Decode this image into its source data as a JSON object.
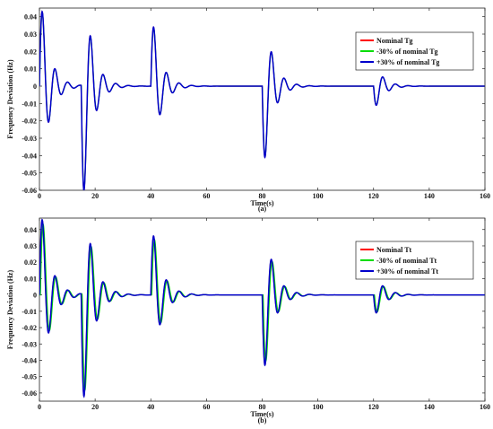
{
  "chart_data": [
    {
      "type": "line",
      "caption": "(a)",
      "xlabel": "Time(s)",
      "ylabel": "Frequency Deviation (Hz)",
      "xlim": [
        0,
        160
      ],
      "ylim": [
        -0.06,
        0.045
      ],
      "xticks": [
        0,
        20,
        40,
        60,
        80,
        100,
        120,
        140,
        160
      ],
      "yticks": [
        0.04,
        0.03,
        0.02,
        0.01,
        0,
        -0.01,
        -0.02,
        -0.03,
        -0.04,
        -0.05,
        -0.06
      ],
      "legend_position": "top-right",
      "series": [
        {
          "name": "Nominal Tg",
          "color": "#ff0000",
          "gain": 1.0,
          "shift": 0.0
        },
        {
          "name": "-30% of nominal Tg",
          "color": "#00dd00",
          "gain": 0.985,
          "shift": 0.05
        },
        {
          "name": "+30% of nominal Tg",
          "color": "#0000cc",
          "gain": 1.0,
          "shift": 0.0
        }
      ],
      "disturbances": [
        {
          "t": 0,
          "peak": 0.043,
          "trough": -0.017,
          "freq_hz": 0.22,
          "decay": 0.32
        },
        {
          "t": 15,
          "peak": -0.06,
          "trough": 0.019,
          "freq_hz": 0.22,
          "decay": 0.32
        },
        {
          "t": 40,
          "peak": 0.034,
          "trough": -0.012,
          "freq_hz": 0.22,
          "decay": 0.32
        },
        {
          "t": 80,
          "peak": -0.041,
          "trough": 0.013,
          "freq_hz": 0.22,
          "decay": 0.32
        },
        {
          "t": 120,
          "peak": -0.011,
          "trough": 0.004,
          "freq_hz": 0.22,
          "decay": 0.32
        }
      ]
    },
    {
      "type": "line",
      "caption": "(b)",
      "xlabel": "Time(s)",
      "ylabel": "Frequency Deviation (Hz)",
      "xlim": [
        0,
        160
      ],
      "ylim": [
        -0.065,
        0.047
      ],
      "xticks": [
        0,
        20,
        40,
        60,
        80,
        100,
        120,
        140,
        160
      ],
      "yticks": [
        0.04,
        0.03,
        0.02,
        0.01,
        0,
        -0.01,
        -0.02,
        -0.03,
        -0.04,
        -0.05,
        -0.06
      ],
      "legend_position": "top-right",
      "series": [
        {
          "name": "Nominal Tt",
          "color": "#ff0000",
          "gain": 1.0,
          "shift": 0.0
        },
        {
          "name": "-30% of nominal Tt",
          "color": "#00dd00",
          "gain": 0.94,
          "shift": 0.35
        },
        {
          "name": "+30% of nominal Tt",
          "color": "#0000cc",
          "gain": 1.0,
          "shift": 0.0
        }
      ],
      "disturbances": [
        {
          "t": 0,
          "peak": 0.046,
          "trough": -0.02,
          "freq_hz": 0.22,
          "decay": 0.3
        },
        {
          "t": 15,
          "peak": -0.062,
          "trough": 0.022,
          "freq_hz": 0.22,
          "decay": 0.3
        },
        {
          "t": 40,
          "peak": 0.036,
          "trough": -0.013,
          "freq_hz": 0.22,
          "decay": 0.3
        },
        {
          "t": 80,
          "peak": -0.043,
          "trough": 0.014,
          "freq_hz": 0.22,
          "decay": 0.3
        },
        {
          "t": 120,
          "peak": -0.011,
          "trough": 0.005,
          "freq_hz": 0.22,
          "decay": 0.3
        }
      ]
    }
  ]
}
